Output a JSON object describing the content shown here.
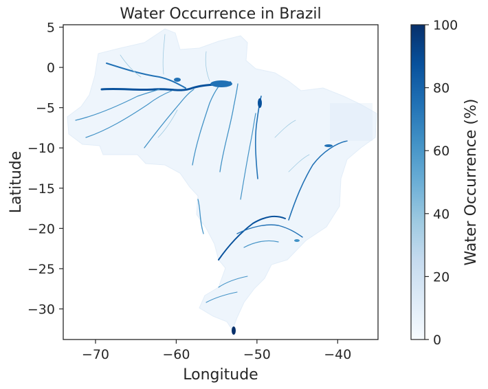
{
  "chart_data": {
    "type": "heatmap",
    "title": "Water Occurrence in Brazil",
    "xlabel": "Longitude",
    "ylabel": "Latitude",
    "x_ticks": [
      -70,
      -60,
      -50,
      -40
    ],
    "x_tick_labels": [
      "−70",
      "−60",
      "−50",
      "−40"
    ],
    "y_ticks": [
      5,
      0,
      -5,
      -10,
      -15,
      -20,
      -25,
      -30
    ],
    "y_tick_labels": [
      "5",
      "0",
      "−5",
      "−10",
      "−15",
      "−20",
      "−25",
      "−30"
    ],
    "xlim": [
      -74,
      -35
    ],
    "ylim": [
      -33.8,
      5.3
    ],
    "colorbar": {
      "label": "Water Occurrence (%)",
      "range": [
        0,
        100
      ],
      "ticks": [
        0,
        20,
        40,
        60,
        80,
        100
      ],
      "tick_labels": [
        "0",
        "20",
        "40",
        "60",
        "80",
        "100"
      ],
      "colormap": "Blues"
    },
    "grid": false
  },
  "colors": {
    "land_fill": "#eef5fc",
    "river": "#2171b5",
    "river_dark": "#08519c",
    "axis": "#262626",
    "cmap_low": "#f7fbff",
    "cmap_mid": "#6baed6",
    "cmap_high": "#08306b"
  }
}
